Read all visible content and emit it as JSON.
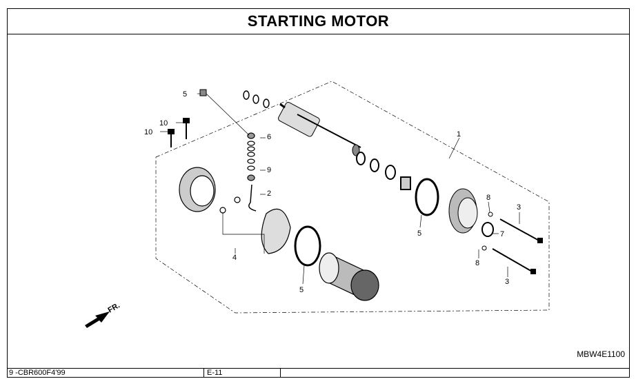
{
  "title": "STARTING MOTOR",
  "drawing_code": "MBW4E1100",
  "footer": {
    "model": "9 -CBR600F4'99",
    "page": "E-11"
  },
  "direction_label": "FR.",
  "callouts": {
    "c1": "1",
    "c2": "2",
    "c3a": "3",
    "c3b": "3",
    "c4": "4",
    "c5a": "5",
    "c5b": "5",
    "c5c": "5",
    "c6": "6",
    "c7": "7",
    "c8a": "8",
    "c8b": "8",
    "c9": "9",
    "c10a": "10",
    "c10b": "10"
  }
}
